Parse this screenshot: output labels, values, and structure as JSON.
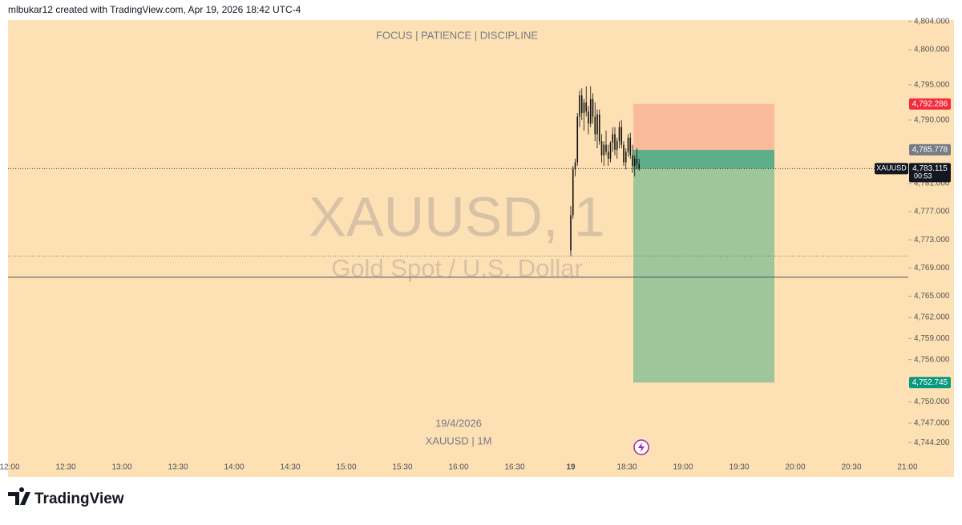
{
  "header": {
    "text": "mlbukar12 created with TradingView.com, Apr 19, 2026 18:42 UTC-4"
  },
  "chart_data": {
    "type": "candlestick",
    "title": "FOCUS | PATIENCE | DISCIPLINE",
    "watermark": {
      "symbol": "XAUUSD, 1",
      "description": "Gold Spot / U.S. Dollar"
    },
    "date_note": "19/4/2026",
    "symbol_note": "XAUUSD | 1M",
    "categories": [
      "12:00",
      "12:30",
      "13:00",
      "13:30",
      "14:00",
      "14:30",
      "15:00",
      "15:30",
      "16:00",
      "16:30",
      "19",
      "18:30",
      "19:00",
      "19:30",
      "20:00",
      "20:30",
      "21:00"
    ],
    "ylim": [
      4742.2,
      4804.2
    ],
    "yticks": [
      {
        "value": 4804,
        "label": "4,804.000"
      },
      {
        "value": 4800,
        "label": "4,800.000"
      },
      {
        "value": 4795,
        "label": "4,795.000"
      },
      {
        "value": 4790,
        "label": "4,790.000"
      },
      {
        "value": 4781,
        "label": "4,781.000"
      },
      {
        "value": 4777,
        "label": "4,777.000"
      },
      {
        "value": 4773,
        "label": "4,773.000"
      },
      {
        "value": 4769,
        "label": "4,769.000"
      },
      {
        "value": 4765,
        "label": "4,765.000"
      },
      {
        "value": 4762,
        "label": "4,762.000"
      },
      {
        "value": 4759,
        "label": "4,759.000"
      },
      {
        "value": 4756,
        "label": "4,756.000"
      },
      {
        "value": 4750,
        "label": "4,750.000"
      },
      {
        "value": 4747,
        "label": "4,747.000"
      },
      {
        "value": 4744.2,
        "label": "4,744.200"
      }
    ],
    "candle_color": "#111111",
    "candles": [
      [
        4771.5,
        4777.8,
        4770.7,
        4776.5
      ],
      [
        4776.5,
        4783.5,
        4776,
        4783
      ],
      [
        4783,
        4784.5,
        4782,
        4784
      ],
      [
        4784,
        4791,
        4783.5,
        4790.5
      ],
      [
        4790.5,
        4794.2,
        4789,
        4793.5
      ],
      [
        4793.5,
        4794.5,
        4790,
        4791
      ],
      [
        4791,
        4793,
        4788.5,
        4792.5
      ],
      [
        4792.5,
        4794.8,
        4790.5,
        4791.2
      ],
      [
        4791.2,
        4792,
        4788,
        4789.5
      ],
      [
        4789.5,
        4794.8,
        4789,
        4793
      ],
      [
        4793,
        4793.8,
        4789.5,
        4790.5
      ],
      [
        4790.5,
        4792.5,
        4787,
        4788
      ],
      [
        4788,
        4791.5,
        4786,
        4790.8
      ],
      [
        4790.8,
        4791.5,
        4786.5,
        4787
      ],
      [
        4787,
        4788,
        4784,
        4785
      ],
      [
        4785,
        4787,
        4783.5,
        4786.5
      ],
      [
        4786.5,
        4788.5,
        4785,
        4785.5
      ],
      [
        4785.5,
        4786.5,
        4783.5,
        4784.5
      ],
      [
        4784.5,
        4787,
        4784,
        4786.8
      ],
      [
        4786.8,
        4789,
        4785.5,
        4788
      ],
      [
        4788,
        4789,
        4785,
        4785.8
      ],
      [
        4785.8,
        4787.5,
        4784.5,
        4787
      ],
      [
        4787,
        4789.8,
        4786,
        4789
      ],
      [
        4789,
        4790,
        4786,
        4786.5
      ],
      [
        4786.5,
        4787,
        4783.5,
        4784
      ],
      [
        4784,
        4786,
        4783,
        4785.5
      ],
      [
        4785.5,
        4788,
        4784.8,
        4787.5
      ],
      [
        4787.5,
        4788.2,
        4784.5,
        4785
      ],
      [
        4785,
        4786.5,
        4782.5,
        4783.5
      ],
      [
        4783.5,
        4785,
        4782,
        4784.5
      ],
      [
        4784.5,
        4786,
        4783,
        4783.8
      ],
      [
        4783.8,
        4784.5,
        4782.8,
        4783.115
      ]
    ],
    "position": {
      "stop": {
        "value": 4792.286,
        "label": "4,792.286",
        "color": "#f22c3d"
      },
      "entry": {
        "value": 4785.778,
        "label": "4,785.778",
        "color": "#787b86"
      },
      "target": {
        "value": 4752.745,
        "label": "4,752.745",
        "color": "#089981"
      },
      "stop_fill": "#f9b79a",
      "target_fill": "#9fc59b",
      "open_fill": "#5fae8a"
    },
    "last_price": {
      "symbol": "XAUUSD",
      "value": 4783.115,
      "label": "4,783.115",
      "countdown": "00:53"
    },
    "hlines": [
      4767.7
    ],
    "dotted_lines": [
      4770.7
    ]
  },
  "footer": {
    "logo": "TradingView"
  }
}
